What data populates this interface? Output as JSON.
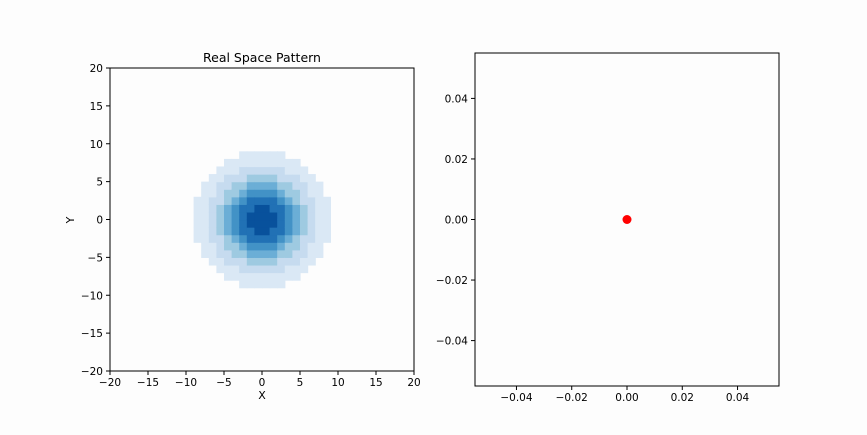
{
  "chart_data": [
    {
      "type": "heatmap",
      "title": "Real Space Pattern",
      "xlabel": "X",
      "ylabel": "Y",
      "xlim": [
        -20,
        20
      ],
      "ylim": [
        -20,
        20
      ],
      "xticks": [
        -20,
        -15,
        -10,
        -5,
        0,
        5,
        10,
        15,
        20
      ],
      "yticks": [
        -20,
        -15,
        -10,
        -5,
        0,
        5,
        10,
        15,
        20
      ],
      "xtick_labels": [
        "−20",
        "−15",
        "−10",
        "−5",
        "0",
        "5",
        "10",
        "15",
        "20"
      ],
      "ytick_labels": [
        "−20",
        "−15",
        "−10",
        "−5",
        "0",
        "5",
        "10",
        "15",
        "20"
      ],
      "pattern": {
        "shape": "radial-gaussian",
        "center": [
          0,
          0
        ],
        "sigma": 3.7,
        "visible_radius": 9,
        "levels": 7,
        "colormap": [
          "#dae8f5",
          "#c6dbef",
          "#9ecae1",
          "#6baed6",
          "#4292c6",
          "#2171b5",
          "#08519c",
          "#08306b"
        ]
      },
      "grid": false
    },
    {
      "type": "scatter",
      "title": "",
      "xlabel": "",
      "ylabel": "",
      "xlim": [
        -0.055,
        0.055
      ],
      "ylim": [
        -0.055,
        0.055
      ],
      "xticks": [
        -0.04,
        -0.02,
        0.0,
        0.02,
        0.04
      ],
      "yticks": [
        -0.04,
        -0.02,
        0.0,
        0.02,
        0.04
      ],
      "xtick_labels": [
        "−0.04",
        "−0.02",
        "0.00",
        "0.02",
        "0.04"
      ],
      "ytick_labels": [
        "−0.04",
        "−0.02",
        "0.00",
        "0.02",
        "0.04"
      ],
      "points": [
        {
          "x": 0.0,
          "y": 0.0
        }
      ],
      "marker_color": "#ff0000",
      "grid": false
    }
  ]
}
